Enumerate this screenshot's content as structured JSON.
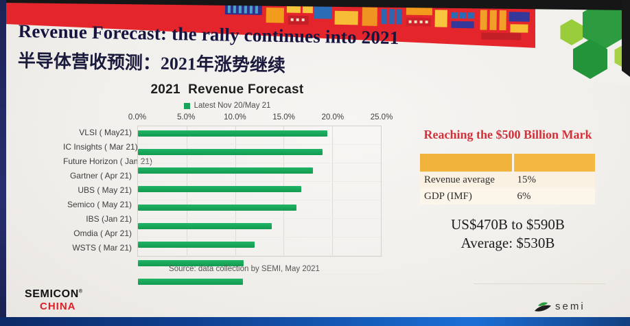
{
  "slide": {
    "title": "Revenue Forecast: the rally continues into 2021",
    "subtitle_zh": "半导体营收预测：2021年涨势继续"
  },
  "chart": {
    "title": "2021  Revenue Forecast",
    "legend": "Latest Nov 20/May 21",
    "source": "Source: data collection by SEMI, May 2021"
  },
  "chart_data": {
    "type": "bar",
    "orientation": "horizontal",
    "title": "2021 Revenue Forecast",
    "legend_entries": [
      "Latest Nov 20/May 21"
    ],
    "legend_position": "top",
    "categories": [
      "VLSI ( May21)",
      "IC Insights ( Mar 21)",
      "Future Horizon ( Jan 21)",
      "Gartner ( Apr 21)",
      "UBS ( May 21)",
      "Semico ( May 21)",
      "IBS (Jan 21)",
      "Omdia ( Apr 21)",
      "WSTS ( Mar 21)"
    ],
    "values": [
      19.5,
      19.0,
      18.0,
      16.8,
      16.3,
      13.8,
      12.0,
      10.9,
      10.8
    ],
    "unit": "%",
    "xlim": [
      0,
      25
    ],
    "x_ticks": [
      "0.0%",
      "5.0%",
      "10.0%",
      "15.0%",
      "20.0%",
      "25.0%"
    ],
    "x_tick_values": [
      0,
      5,
      10,
      15,
      20,
      25
    ],
    "grid": true,
    "bar_color": "#17a458",
    "source": "Source: data collection by SEMI, May 2021"
  },
  "panel": {
    "heading": "Reaching the $500 Billion Mark",
    "table": {
      "rows": [
        {
          "label": "Revenue average",
          "value": "15%"
        },
        {
          "label": "GDP (IMF)",
          "value": "6%"
        }
      ]
    },
    "range_line1": "US$470B to $590B",
    "range_line2": "Average: $530B"
  },
  "footer": {
    "logo_semicon": "SEMICON",
    "logo_semicon_reg": "®",
    "logo_china": "CHINA",
    "logo_semi": "semi"
  },
  "colors": {
    "bar": "#17a458",
    "banner_red": "#e4252b",
    "heading_red": "#d4303a",
    "navy_edge": "#232a63",
    "table_header": "#f2b33d",
    "table_row_bg": "#fbf1e2",
    "hex_dark_green": "#2d9b3f",
    "hex_light_green": "#9acd3b",
    "bottom_strip_blue": "#1559b5"
  }
}
